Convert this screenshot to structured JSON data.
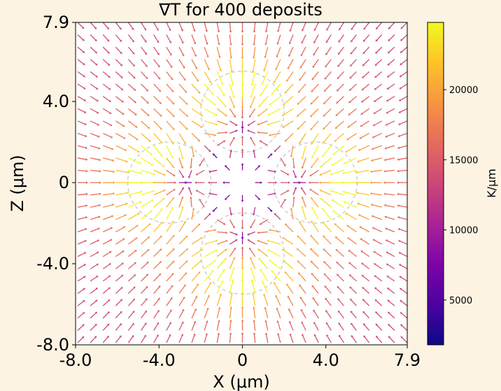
{
  "chart_data": {
    "type": "quiver",
    "title": "∇T for 400 deposits",
    "xlabel": "X (μm)",
    "ylabel": "Z (μm)",
    "xlim": [
      -8.0,
      7.9
    ],
    "ylim": [
      -8.0,
      7.9
    ],
    "xticks": [
      -8.0,
      -4.0,
      0,
      4.0,
      7.9
    ],
    "xtick_labels": [
      "-8.0",
      "-4.0",
      "0",
      "4.0",
      "7.9"
    ],
    "yticks": [
      -8.0,
      -4.0,
      0,
      4.0,
      7.9
    ],
    "ytick_labels": [
      "-8.0",
      "-4.0",
      "0",
      "4.0",
      "7.9"
    ],
    "colorbar": {
      "label": "K/μm",
      "colormap": "plasma",
      "range": [
        1800,
        24800
      ],
      "ticks": [
        5000,
        10000,
        15000,
        20000
      ],
      "tick_labels": [
        "5000",
        "10000",
        "15000",
        "20000"
      ]
    },
    "deposits": [
      {
        "x": 0,
        "z": 3.5,
        "r": 2.0
      },
      {
        "x": -3.5,
        "z": 0,
        "r": 2.0
      },
      {
        "x": 3.5,
        "z": 0,
        "r": 2.0
      },
      {
        "x": 0,
        "z": -3.5,
        "r": 2.0
      }
    ],
    "grid": false
  }
}
